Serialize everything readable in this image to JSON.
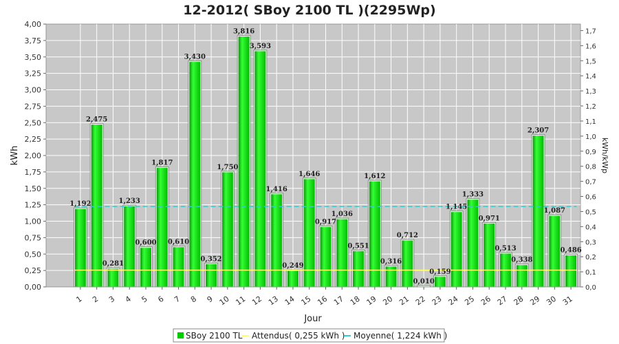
{
  "chart_data": {
    "type": "bar",
    "title": "12-2012( SBoy 2100 TL )(2295Wp)",
    "xlabel": "Jour",
    "ylabel": "kWh",
    "y2label": "kWh/kWp",
    "ylim": [
      0,
      4
    ],
    "y2lim": [
      0,
      1.743
    ],
    "yticks": [
      "0,00",
      "0,25",
      "0,50",
      "0,75",
      "1,00",
      "1,25",
      "1,50",
      "1,75",
      "2,00",
      "2,25",
      "2,50",
      "2,75",
      "3,00",
      "3,25",
      "3,50",
      "3,75",
      "4,00"
    ],
    "y2ticks": [
      "0,0",
      "0,1",
      "0,2",
      "0,3",
      "0,4",
      "0,5",
      "0,6",
      "0,7",
      "0,8",
      "0,9",
      "1,0",
      "1,1",
      "1,2",
      "1,3",
      "1,4",
      "1,5",
      "1,6",
      "1,7"
    ],
    "categories": [
      "1",
      "2",
      "3",
      "4",
      "5",
      "6",
      "7",
      "8",
      "9",
      "10",
      "11",
      "12",
      "13",
      "14",
      "15",
      "16",
      "17",
      "18",
      "19",
      "20",
      "21",
      "22",
      "23",
      "24",
      "25",
      "26",
      "27",
      "28",
      "29",
      "30",
      "31"
    ],
    "series": [
      {
        "name": "SBoy 2100 TL",
        "color": "#00cc00",
        "values": [
          1.192,
          2.475,
          0.281,
          1.233,
          0.6,
          1.817,
          0.61,
          3.43,
          0.352,
          1.75,
          3.816,
          3.593,
          1.416,
          0.249,
          1.646,
          0.917,
          1.036,
          0.551,
          1.612,
          0.316,
          0.712,
          0.01,
          0.159,
          1.145,
          1.333,
          0.971,
          0.513,
          0.338,
          2.307,
          1.087,
          0.486
        ],
        "labels": [
          "1,192",
          "2,475",
          "0,281",
          "1,233",
          "0,600",
          "1,817",
          "0,610",
          "3,430",
          "0,352",
          "1,750",
          "3,816",
          "3,593",
          "1,416",
          "0,249",
          "1,646",
          "0,917",
          "1,036",
          "0,551",
          "1,612",
          "0,316",
          "0,712",
          "0,010",
          "0,159",
          "1,145",
          "1,333",
          "0,971",
          "0,513",
          "0,338",
          "2,307",
          "1,087",
          "0,486"
        ]
      }
    ],
    "reference_lines": [
      {
        "name": "Attendus( 0,255 kWh )",
        "value": 0.255,
        "color": "#ffff66",
        "style": "solid"
      },
      {
        "name": "Moyenne( 1,224 kWh )",
        "value": 1.224,
        "color": "#33cccc",
        "style": "dashed"
      }
    ],
    "grid": true,
    "plot_background": "#c8c8c8",
    "legend_position": "bottom"
  }
}
